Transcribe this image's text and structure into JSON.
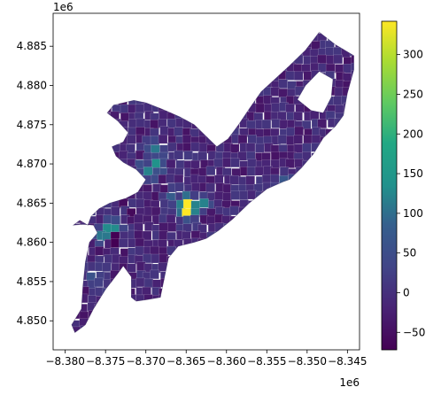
{
  "chart_data": {
    "type": "heatmap",
    "kind": "choropleth map",
    "title": "",
    "xlabel": "",
    "ylabel": "",
    "x_offset_label": "1e6",
    "y_offset_label": "1e6",
    "xlim": [
      -8.3815,
      -8.3435
    ],
    "ylim": [
      4.8463,
      4.8892
    ],
    "x_ticks": [
      -8.38,
      -8.375,
      -8.37,
      -8.365,
      -8.36,
      -8.355,
      -8.35,
      -8.345
    ],
    "x_tick_labels": [
      "−8.380",
      "−8.375",
      "−8.370",
      "−8.365",
      "−8.360",
      "−8.355",
      "−8.350",
      "−8.345"
    ],
    "y_ticks": [
      4.85,
      4.855,
      4.86,
      4.865,
      4.87,
      4.875,
      4.88,
      4.885
    ],
    "y_tick_labels": [
      "4.850",
      "4.855",
      "4.860",
      "4.865",
      "4.870",
      "4.875",
      "4.880",
      "4.885"
    ],
    "colorbar": {
      "colormap": "viridis",
      "vmin": -72,
      "vmax": 342,
      "ticks": [
        -50,
        0,
        50,
        100,
        150,
        200,
        250,
        300
      ],
      "tick_labels": [
        "−50",
        "0",
        "50",
        "100",
        "150",
        "200",
        "250",
        "300"
      ]
    },
    "grid": false,
    "legend": "colorbar right",
    "outline": [
      [
        -8.3782,
        4.8628
      ],
      [
        -8.3772,
        4.8622
      ],
      [
        -8.3768,
        4.8633
      ],
      [
        -8.3758,
        4.8643
      ],
      [
        -8.3745,
        4.865
      ],
      [
        -8.3725,
        4.8656
      ],
      [
        -8.371,
        4.8664
      ],
      [
        -8.37,
        4.868
      ],
      [
        -8.3712,
        4.8693
      ],
      [
        -8.3728,
        4.8702
      ],
      [
        -8.3737,
        4.871
      ],
      [
        -8.3742,
        4.8722
      ],
      [
        -8.3728,
        4.8728
      ],
      [
        -8.3722,
        4.874
      ],
      [
        -8.3735,
        4.8755
      ],
      [
        -8.3748,
        4.8765
      ],
      [
        -8.374,
        4.8775
      ],
      [
        -8.3715,
        4.8781
      ],
      [
        -8.37,
        4.8778
      ],
      [
        -8.368,
        4.877
      ],
      [
        -8.3658,
        4.876
      ],
      [
        -8.364,
        4.875
      ],
      [
        -8.3622,
        4.8732
      ],
      [
        -8.3612,
        4.8722
      ],
      [
        -8.3598,
        4.8732
      ],
      [
        -8.3585,
        4.875
      ],
      [
        -8.3572,
        4.877
      ],
      [
        -8.3557,
        4.8792
      ],
      [
        -8.354,
        4.8808
      ],
      [
        -8.3522,
        4.8825
      ],
      [
        -8.3502,
        4.8845
      ],
      [
        -8.3485,
        4.8868
      ],
      [
        -8.3465,
        4.8852
      ],
      [
        -8.3442,
        4.8838
      ],
      [
        -8.3442,
        4.882
      ],
      [
        -8.345,
        4.879
      ],
      [
        -8.3455,
        4.8762
      ],
      [
        -8.3465,
        4.8748
      ],
      [
        -8.348,
        4.8733
      ],
      [
        -8.3492,
        4.8713
      ],
      [
        -8.3507,
        4.8695
      ],
      [
        -8.3522,
        4.868
      ],
      [
        -8.353,
        4.8677
      ],
      [
        -8.355,
        4.8668
      ],
      [
        -8.3572,
        4.865
      ],
      [
        -8.3592,
        4.863
      ],
      [
        -8.361,
        4.8615
      ],
      [
        -8.3625,
        4.8605
      ],
      [
        -8.364,
        4.86
      ],
      [
        -8.366,
        4.8595
      ],
      [
        -8.3672,
        4.858
      ],
      [
        -8.3677,
        4.8555
      ],
      [
        -8.3682,
        4.853
      ],
      [
        -8.3698,
        4.8527
      ],
      [
        -8.3712,
        4.8525
      ],
      [
        -8.3718,
        4.853
      ],
      [
        -8.3718,
        4.8556
      ],
      [
        -8.3728,
        4.857
      ],
      [
        -8.3735,
        4.856
      ],
      [
        -8.375,
        4.854
      ],
      [
        -8.3765,
        4.8515
      ],
      [
        -8.3775,
        4.8495
      ],
      [
        -8.3788,
        4.8485
      ],
      [
        -8.3792,
        4.8495
      ],
      [
        -8.378,
        4.8515
      ],
      [
        -8.3778,
        4.8545
      ],
      [
        -8.3775,
        4.8575
      ],
      [
        -8.377,
        4.86
      ],
      [
        -8.376,
        4.8612
      ],
      [
        -8.3765,
        4.8622
      ],
      [
        -8.3778,
        4.8623
      ],
      [
        -8.379,
        4.8622
      ]
    ],
    "hole": [
      [
        -8.3502,
        4.88
      ],
      [
        -8.3485,
        4.8818
      ],
      [
        -8.3468,
        4.8808
      ],
      [
        -8.347,
        4.8785
      ],
      [
        -8.348,
        4.8765
      ],
      [
        -8.3495,
        4.8768
      ],
      [
        -8.3512,
        4.8782
      ]
    ],
    "hotspots": [
      {
        "x": -8.365,
        "y": 4.8644,
        "value": 342
      },
      {
        "x": -8.3632,
        "y": 4.8651,
        "value": 120
      },
      {
        "x": -8.3668,
        "y": 4.8658,
        "value": 80
      },
      {
        "x": -8.374,
        "y": 4.8618,
        "value": 130
      },
      {
        "x": -8.3752,
        "y": 4.861,
        "value": 110
      },
      {
        "x": -8.369,
        "y": 4.87,
        "value": 140
      },
      {
        "x": -8.37,
        "y": 4.8688,
        "value": 120
      },
      {
        "x": -8.369,
        "y": 4.872,
        "value": 110
      },
      {
        "x": -8.352,
        "y": 4.867,
        "value": 90
      },
      {
        "x": -8.353,
        "y": 4.8678,
        "value": 70
      },
      {
        "x": -8.3765,
        "y": 4.856,
        "value": 60
      },
      {
        "x": -8.3742,
        "y": 4.8525,
        "value": 55
      },
      {
        "x": -8.3648,
        "y": 4.863,
        "value": 60
      },
      {
        "x": -8.3608,
        "y": 4.8608,
        "value": 50
      },
      {
        "x": -8.3738,
        "y": 4.8602,
        "value": -72
      },
      {
        "x": -8.372,
        "y": 4.864,
        "value": -60
      },
      {
        "x": -8.3727,
        "y": 4.865,
        "value": -55
      },
      {
        "x": -8.3768,
        "y": 4.85,
        "value": -40
      }
    ]
  }
}
